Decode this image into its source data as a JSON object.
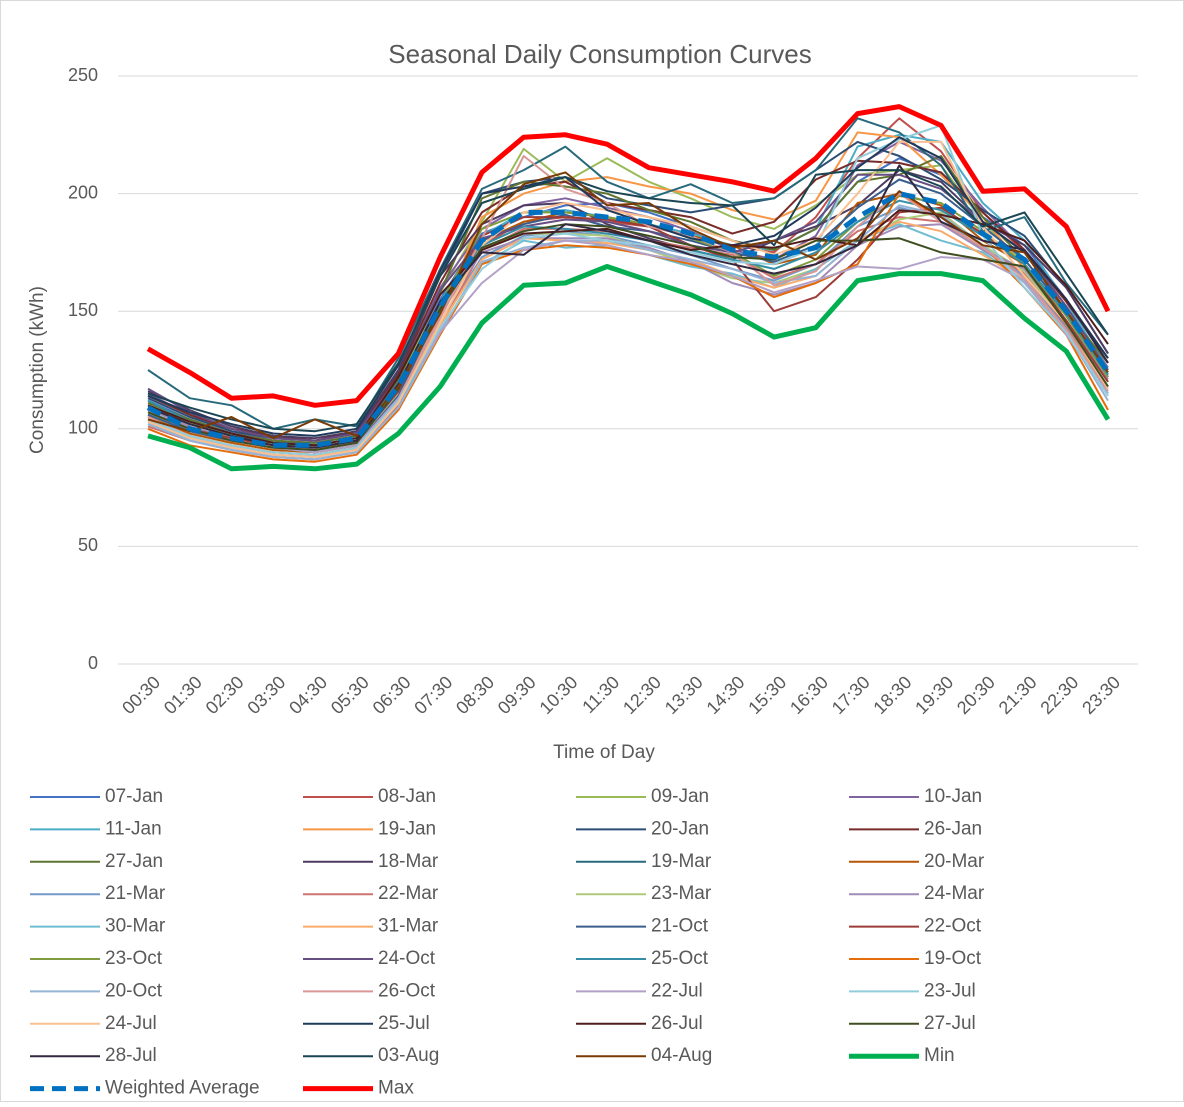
{
  "chart_data": {
    "type": "line",
    "title": "Seasonal Daily Consumption Curves",
    "x_label": "Time of Day",
    "y_label": "Consumption (kWh)",
    "categories": [
      "00:30",
      "01:30",
      "02:30",
      "03:30",
      "04:30",
      "05:30",
      "06:30",
      "07:30",
      "08:30",
      "09:30",
      "10:30",
      "11:30",
      "12:30",
      "13:30",
      "14:30",
      "15:30",
      "16:30",
      "17:30",
      "18:30",
      "19:30",
      "20:30",
      "21:30",
      "22:30",
      "23:30"
    ],
    "ylim": [
      0,
      250
    ],
    "yticks": [
      0,
      50,
      100,
      150,
      200,
      250
    ],
    "grid": true,
    "legend": "bottom",
    "series": [
      {
        "name": "07-Jan",
        "color": "#4472c4",
        "values": [
          112,
          104,
          98,
          95,
          93,
          96,
          120,
          155,
          183,
          190,
          195,
          196,
          192,
          186,
          180,
          176,
          185,
          205,
          215,
          208,
          190,
          178,
          155,
          128
        ]
      },
      {
        "name": "08-Jan",
        "color": "#c0504d",
        "values": [
          106,
          99,
          95,
          92,
          91,
          94,
          116,
          150,
          178,
          188,
          190,
          188,
          186,
          182,
          178,
          175,
          190,
          215,
          232,
          218,
          192,
          175,
          150,
          122
        ]
      },
      {
        "name": "09-Jan",
        "color": "#9bbb59",
        "values": [
          110,
          103,
          97,
          94,
          92,
          95,
          119,
          158,
          188,
          219,
          205,
          215,
          205,
          198,
          190,
          185,
          195,
          208,
          210,
          212,
          188,
          170,
          148,
          120
        ]
      },
      {
        "name": "10-Jan",
        "color": "#8064a2",
        "values": [
          115,
          106,
          99,
          95,
          94,
          97,
          121,
          160,
          185,
          195,
          198,
          194,
          190,
          184,
          176,
          172,
          182,
          212,
          222,
          214,
          194,
          176,
          152,
          126
        ]
      },
      {
        "name": "11-Jan",
        "color": "#4bacc6",
        "values": [
          108,
          101,
          96,
          93,
          92,
          95,
          117,
          154,
          182,
          192,
          193,
          190,
          187,
          183,
          178,
          176,
          185,
          220,
          225,
          222,
          196,
          180,
          154,
          125
        ]
      },
      {
        "name": "19-Jan",
        "color": "#f79646",
        "values": [
          104,
          97,
          93,
          90,
          89,
          92,
          113,
          148,
          190,
          200,
          205,
          207,
          203,
          200,
          193,
          189,
          197,
          226,
          224,
          208,
          190,
          168,
          146,
          120
        ]
      },
      {
        "name": "20-Jan",
        "color": "#2c4d75",
        "values": [
          113,
          105,
          99,
          96,
          95,
          98,
          124,
          165,
          200,
          205,
          207,
          198,
          195,
          192,
          195,
          198,
          210,
          222,
          216,
          206,
          193,
          182,
          160,
          132
        ]
      },
      {
        "name": "26-Jan",
        "color": "#772c2a",
        "values": [
          114,
          106,
          100,
          97,
          95,
          99,
          123,
          162,
          192,
          203,
          205,
          196,
          193,
          190,
          183,
          188,
          206,
          214,
          213,
          209,
          192,
          176,
          154,
          130
        ]
      },
      {
        "name": "27-Jan",
        "color": "#5f7530",
        "values": [
          111,
          104,
          98,
          95,
          94,
          97,
          121,
          158,
          198,
          205,
          203,
          200,
          193,
          188,
          180,
          176,
          185,
          205,
          208,
          216,
          190,
          172,
          150,
          128
        ]
      },
      {
        "name": "18-Mar",
        "color": "#4d3b62",
        "values": [
          116,
          108,
          101,
          97,
          96,
          99,
          125,
          165,
          187,
          195,
          196,
          187,
          181,
          176,
          172,
          180,
          186,
          195,
          210,
          205,
          188,
          178,
          160,
          132
        ]
      },
      {
        "name": "19-Mar",
        "color": "#276a7c",
        "values": [
          125,
          113,
          110,
          100,
          104,
          101,
          130,
          168,
          202,
          210,
          220,
          205,
          198,
          204,
          196,
          198,
          210,
          232,
          226,
          212,
          184,
          190,
          162,
          140
        ]
      },
      {
        "name": "20-Mar",
        "color": "#b65708",
        "values": [
          105,
          98,
          94,
          91,
          90,
          93,
          115,
          150,
          180,
          188,
          192,
          190,
          186,
          182,
          178,
          170,
          174,
          196,
          200,
          195,
          180,
          170,
          148,
          122
        ]
      },
      {
        "name": "21-Mar",
        "color": "#729aca",
        "values": [
          103,
          96,
          92,
          89,
          88,
          91,
          112,
          145,
          173,
          182,
          184,
          182,
          178,
          174,
          168,
          163,
          170,
          186,
          194,
          190,
          176,
          165,
          143,
          118
        ]
      },
      {
        "name": "22-Mar",
        "color": "#cd7371",
        "values": [
          101,
          95,
          91,
          88,
          87,
          90,
          110,
          143,
          176,
          185,
          185,
          184,
          180,
          177,
          174,
          164,
          170,
          184,
          190,
          188,
          177,
          166,
          144,
          118
        ]
      },
      {
        "name": "23-Mar",
        "color": "#afc97a",
        "values": [
          107,
          100,
          95,
          92,
          91,
          94,
          115,
          150,
          176,
          183,
          183,
          182,
          176,
          170,
          164,
          162,
          168,
          180,
          189,
          192,
          178,
          167,
          145,
          120
        ]
      },
      {
        "name": "24-Mar",
        "color": "#a18bb8",
        "values": [
          109,
          101,
          96,
          93,
          91,
          94,
          116,
          149,
          175,
          181,
          181,
          181,
          177,
          171,
          162,
          157,
          162,
          178,
          186,
          187,
          176,
          168,
          146,
          121
        ]
      },
      {
        "name": "30-Mar",
        "color": "#6fbdd1",
        "values": [
          102,
          96,
          92,
          89,
          88,
          91,
          111,
          142,
          170,
          180,
          177,
          178,
          174,
          169,
          166,
          160,
          168,
          180,
          187,
          180,
          175,
          163,
          140,
          115
        ]
      },
      {
        "name": "31-Mar",
        "color": "#f9ab6b",
        "values": [
          104,
          97,
          93,
          90,
          89,
          91,
          112,
          144,
          172,
          181,
          180,
          179,
          176,
          172,
          165,
          160,
          165,
          180,
          188,
          184,
          174,
          163,
          142,
          117
        ]
      },
      {
        "name": "21-Oct",
        "color": "#3a5e8c",
        "values": [
          106,
          99,
          95,
          92,
          90,
          93,
          114,
          151,
          180,
          187,
          191,
          186,
          184,
          180,
          175,
          171,
          178,
          194,
          206,
          200,
          186,
          172,
          150,
          123
        ]
      },
      {
        "name": "22-Oct",
        "color": "#9d3b38",
        "values": [
          108,
          100,
          96,
          93,
          92,
          95,
          116,
          152,
          182,
          190,
          190,
          189,
          186,
          178,
          172,
          150,
          156,
          172,
          192,
          194,
          183,
          170,
          146,
          120
        ]
      },
      {
        "name": "23-Oct",
        "color": "#7f9d40",
        "values": [
          110,
          102,
          97,
          94,
          93,
          96,
          118,
          153,
          185,
          192,
          192,
          190,
          187,
          181,
          175,
          165,
          172,
          188,
          199,
          196,
          184,
          170,
          148,
          122
        ]
      },
      {
        "name": "24-Oct",
        "color": "#664e82",
        "values": [
          117,
          107,
          100,
          96,
          95,
          98,
          122,
          159,
          181,
          186,
          189,
          188,
          184,
          178,
          175,
          180,
          188,
          208,
          208,
          202,
          188,
          175,
          152,
          125
        ]
      },
      {
        "name": "25-Oct",
        "color": "#358ea6",
        "values": [
          112,
          103,
          98,
          94,
          93,
          96,
          119,
          152,
          178,
          186,
          185,
          183,
          180,
          176,
          172,
          168,
          175,
          188,
          197,
          193,
          182,
          170,
          149,
          123
        ]
      },
      {
        "name": "19-Oct",
        "color": "#e46c0a",
        "values": [
          100,
          93,
          90,
          87,
          86,
          89,
          108,
          140,
          170,
          176,
          178,
          177,
          174,
          170,
          165,
          156,
          162,
          170,
          200,
          190,
          178,
          160,
          140,
          108
        ]
      },
      {
        "name": "20-Oct",
        "color": "#95b3d7",
        "values": [
          102,
          95,
          91,
          88,
          87,
          90,
          109,
          141,
          171,
          177,
          180,
          180,
          176,
          172,
          168,
          162,
          165,
          180,
          195,
          191,
          178,
          162,
          141,
          112
        ]
      },
      {
        "name": "26-Oct",
        "color": "#d99795",
        "values": [
          105,
          97,
          93,
          90,
          89,
          92,
          113,
          147,
          181,
          216,
          202,
          196,
          186,
          182,
          175,
          161,
          167,
          186,
          200,
          188,
          177,
          164,
          142,
          116
        ]
      },
      {
        "name": "22-Jul",
        "color": "#b2a1c7",
        "values": [
          108,
          100,
          95,
          92,
          90,
          93,
          113,
          141,
          162,
          176,
          180,
          178,
          174,
          171,
          165,
          158,
          163,
          169,
          168,
          173,
          172,
          163,
          140,
          115
        ]
      },
      {
        "name": "23-Jul",
        "color": "#92cddc",
        "values": [
          104,
          97,
          93,
          90,
          89,
          92,
          112,
          143,
          168,
          181,
          183,
          180,
          178,
          175,
          171,
          170,
          177,
          215,
          223,
          229,
          182,
          160,
          141,
          114
        ]
      },
      {
        "name": "24-Jul",
        "color": "#fac090",
        "values": [
          103,
          96,
          92,
          89,
          88,
          91,
          111,
          145,
          178,
          192,
          196,
          193,
          190,
          186,
          180,
          174,
          180,
          200,
          222,
          222,
          186,
          165,
          145,
          117
        ]
      },
      {
        "name": "25-Jul",
        "color": "#1f3a5a",
        "values": [
          114,
          107,
          102,
          98,
          97,
          100,
          127,
          167,
          200,
          203,
          207,
          193,
          187,
          181,
          178,
          182,
          194,
          211,
          224,
          215,
          188,
          175,
          155,
          130
        ]
      },
      {
        "name": "26-Jul",
        "color": "#4f1e1c",
        "values": [
          110,
          103,
          98,
          94,
          93,
          96,
          122,
          157,
          176,
          183,
          184,
          185,
          180,
          176,
          178,
          177,
          181,
          178,
          193,
          191,
          187,
          180,
          161,
          136
        ]
      },
      {
        "name": "27-Jul",
        "color": "#3f4e20",
        "values": [
          107,
          100,
          95,
          92,
          91,
          94,
          117,
          151,
          177,
          184,
          187,
          186,
          182,
          178,
          173,
          172,
          180,
          180,
          181,
          175,
          172,
          169,
          145,
          118
        ]
      },
      {
        "name": "28-Jul",
        "color": "#33283f",
        "values": [
          109,
          102,
          97,
          93,
          92,
          95,
          119,
          154,
          175,
          174,
          187,
          184,
          180,
          174,
          170,
          166,
          170,
          178,
          212,
          188,
          180,
          176,
          155,
          128
        ]
      },
      {
        "name": "03-Aug",
        "color": "#1a4653",
        "values": [
          115,
          109,
          104,
          100,
          99,
          102,
          128,
          165,
          196,
          202,
          207,
          201,
          198,
          196,
          195,
          178,
          208,
          210,
          210,
          203,
          186,
          192,
          166,
          140
        ]
      },
      {
        "name": "04-Aug",
        "color": "#7a3a05",
        "values": [
          104,
          99,
          105,
          96,
          104,
          97,
          118,
          149,
          187,
          204,
          209,
          195,
          196,
          185,
          177,
          180,
          172,
          181,
          201,
          190,
          178,
          175,
          150,
          124
        ]
      },
      {
        "name": "Min",
        "color": "#00b050",
        "emphasis": true,
        "values": [
          97,
          92,
          83,
          84,
          83,
          85,
          98,
          118,
          145,
          161,
          162,
          169,
          163,
          157,
          149,
          139,
          143,
          163,
          166,
          166,
          163,
          147,
          133,
          104
        ]
      },
      {
        "name": "Weighted Average",
        "color": "#0070c0",
        "emphasis": true,
        "dashed": true,
        "values": [
          109,
          100,
          96,
          93,
          93,
          96,
          118,
          152,
          180,
          192,
          192,
          190,
          188,
          183,
          176,
          173,
          177,
          190,
          200,
          196,
          183,
          172,
          150,
          124
        ]
      },
      {
        "name": "Max",
        "color": "#ff0000",
        "emphasis": true,
        "values": [
          134,
          124,
          113,
          114,
          110,
          112,
          132,
          173,
          209,
          224,
          225,
          221,
          211,
          208,
          205,
          201,
          215,
          234,
          237,
          229,
          201,
          202,
          186,
          150
        ]
      }
    ]
  }
}
